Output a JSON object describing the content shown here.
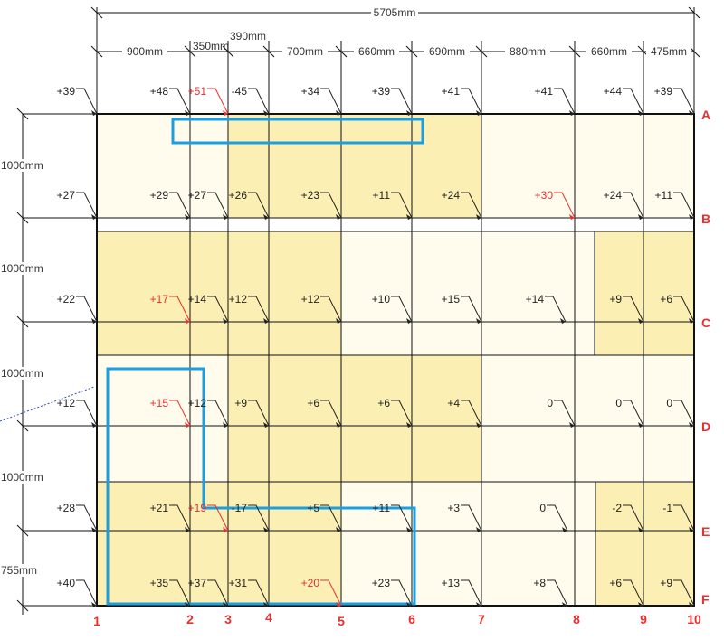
{
  "dimensions": {
    "total": "5705mm",
    "horizontal": [
      "900mm",
      "350mm",
      "390mm",
      "700mm",
      "660mm",
      "690mm",
      "880mm",
      "660mm",
      "475mm"
    ],
    "vertical": [
      "1000mm",
      "1000mm",
      "1000mm",
      "1000mm",
      "755mm"
    ]
  },
  "grid_rows": [
    "A",
    "B",
    "C",
    "D",
    "E",
    "F"
  ],
  "grid_cols": [
    "1",
    "2",
    "3",
    "4",
    "5",
    "6",
    "7",
    "8",
    "9",
    "10"
  ],
  "levels": {
    "A": [
      "+39",
      "+48",
      "+51",
      "-45",
      "+34",
      "+39",
      "+41",
      "+41",
      "+44",
      "+39"
    ],
    "B": [
      "+27",
      "+29",
      "+27",
      "+26",
      "+23",
      "+11",
      "+24",
      "+30",
      "+24",
      "+11"
    ],
    "C": [
      "+22",
      "+17",
      "+14",
      "+12",
      "+12",
      "+10",
      "+15",
      "+14",
      "+9",
      "+6"
    ],
    "D": [
      "+12",
      "+15",
      "+12",
      "+9",
      "+6",
      "+6",
      "+4",
      "0",
      "0",
      "0"
    ],
    "E": [
      "+28",
      "+21",
      "+19",
      "-17",
      "+5",
      "+11",
      "+3",
      "0",
      "-2",
      "-1"
    ],
    "F": [
      "+40",
      "+35",
      "+37",
      "+31",
      "+20",
      "+23",
      "+13",
      "+8",
      "+6",
      "+9"
    ]
  },
  "colors": {
    "fill_dark": "#fcefb4",
    "fill_light": "#fffcee",
    "highlight": "#1a9fe0",
    "grid_label": "#e53030",
    "red_level": "#e53030"
  }
}
